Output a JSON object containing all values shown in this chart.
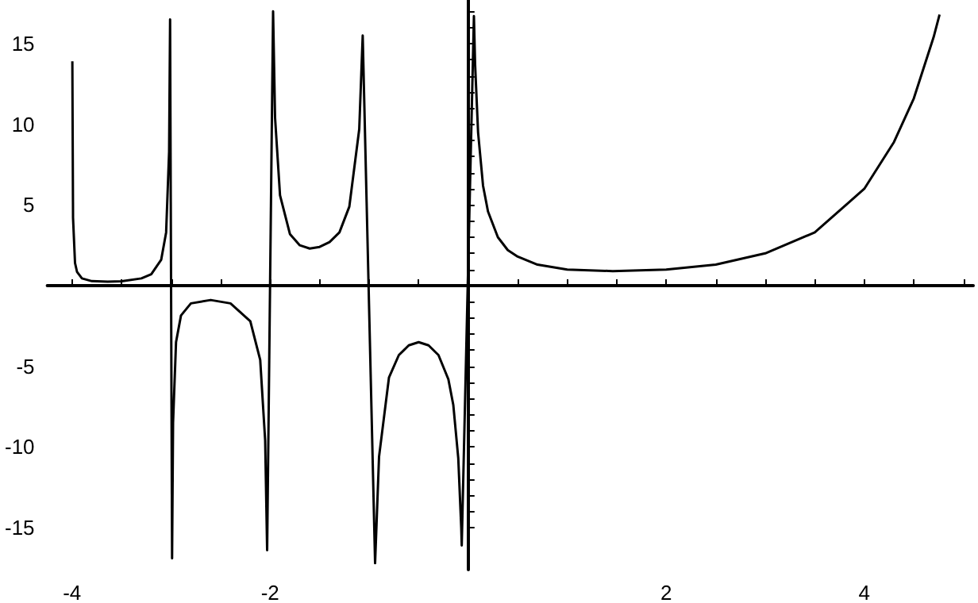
{
  "chart_data": {
    "type": "line",
    "marker": "none",
    "xlim": [
      -4.25,
      5.1
    ],
    "ylim": [
      -17.6,
      17.7
    ],
    "xticks": [
      -4,
      {
        "value": -3.5,
        "label": null
      },
      {
        "value": -3,
        "label": null
      },
      {
        "value": -2.5,
        "label": null
      },
      -2,
      {
        "value": -1.5,
        "label": null
      },
      {
        "value": -1,
        "label": null
      },
      {
        "value": -0.5,
        "label": null
      },
      {
        "value": 0.5,
        "label": null
      },
      {
        "value": 1,
        "label": null
      },
      {
        "value": 1.5,
        "label": null
      },
      2,
      {
        "value": 2.5,
        "label": null
      },
      {
        "value": 3,
        "label": null
      },
      {
        "value": 3.5,
        "label": null
      },
      4,
      {
        "value": 4.5,
        "label": null
      },
      {
        "value": 5,
        "label": null
      }
    ],
    "yticks": [
      -15,
      {
        "value": -14,
        "label": null
      },
      {
        "value": -13,
        "label": null
      },
      {
        "value": -12,
        "label": null
      },
      {
        "value": -11,
        "label": null
      },
      -10,
      {
        "value": -9,
        "label": null
      },
      {
        "value": -8,
        "label": null
      },
      {
        "value": -7,
        "label": null
      },
      {
        "value": -6,
        "label": null
      },
      -5,
      {
        "value": -4,
        "label": null
      },
      {
        "value": -3,
        "label": null
      },
      {
        "value": -2,
        "label": null
      },
      {
        "value": -1,
        "label": null
      },
      {
        "value": 1,
        "label": null
      },
      {
        "value": 2,
        "label": null
      },
      {
        "value": 3,
        "label": null
      },
      {
        "value": 4,
        "label": null
      },
      5,
      {
        "value": 6,
        "label": null
      },
      {
        "value": 7,
        "label": null
      },
      {
        "value": 8,
        "label": null
      },
      {
        "value": 9,
        "label": null
      },
      10,
      {
        "value": 11,
        "label": null
      },
      {
        "value": 12,
        "label": null
      },
      {
        "value": 13,
        "label": null
      },
      {
        "value": 14,
        "label": null
      },
      15,
      {
        "value": 16,
        "label": null
      },
      {
        "value": 17,
        "label": null
      }
    ],
    "series": [
      {
        "color": "#000000",
        "x": [
          -3.997,
          -3.99,
          -3.97,
          -3.95,
          -3.9,
          -3.8,
          -3.64,
          -3.5,
          -3.3,
          -3.2,
          -3.1,
          -3.05,
          -3.02,
          -3.01,
          -2.99,
          -2.98,
          -2.95,
          -2.9,
          -2.8,
          -2.6,
          -2.4,
          -2.2,
          -2.1,
          -2.05,
          -2.03,
          -1.97,
          -1.95,
          -1.9,
          -1.8,
          -1.7,
          -1.6,
          -1.5,
          -1.4,
          -1.3,
          -1.2,
          -1.1,
          -1.065,
          -0.94,
          -0.9,
          -0.8,
          -0.7,
          -0.6,
          -0.5,
          -0.4,
          -0.3,
          -0.2,
          -0.15,
          -0.1,
          -0.07,
          -0.065,
          0.058,
          0.07,
          0.1,
          0.15,
          0.2,
          0.3,
          0.4,
          0.5,
          0.7,
          1,
          1.46,
          2,
          2.5,
          3,
          3.5,
          4,
          4.3,
          4.5,
          4.7,
          4.76
        ],
        "values": [
          13.9,
          4.2,
          1.4,
          0.86,
          0.45,
          0.28,
          0.25,
          0.27,
          0.45,
          0.71,
          1.6,
          3.3,
          8.3,
          16.5,
          -16.9,
          -8.5,
          -3.5,
          -1.85,
          -1.1,
          -0.89,
          -1.1,
          -2.2,
          -4.6,
          -9.6,
          -16.4,
          17,
          10.4,
          5.6,
          3.2,
          2.5,
          2.3,
          2.4,
          2.7,
          3.3,
          4.9,
          9.7,
          15.5,
          -17.2,
          -10.6,
          -5.7,
          -4.3,
          -3.7,
          -3.5,
          -3.7,
          -4.3,
          -5.8,
          -7.4,
          -10.7,
          -15,
          -16.1,
          16.7,
          13.7,
          9.5,
          6.2,
          4.6,
          3,
          2.2,
          1.8,
          1.3,
          1,
          0.9,
          1,
          1.3,
          2,
          3.3,
          6,
          8.9,
          11.6,
          15.4,
          16.8
        ]
      }
    ]
  }
}
